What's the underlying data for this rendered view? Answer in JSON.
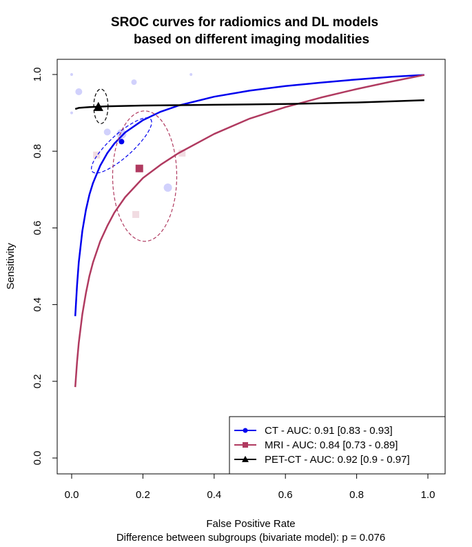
{
  "chart_data": {
    "type": "line",
    "title_lines": [
      "SROC curves for radiomics and DL models",
      "based on different imaging modalities"
    ],
    "xlabel": "False Positive Rate",
    "ylabel": "Sensitivity",
    "footnote": "Difference between subgroups (bivariate model): p = 0.076",
    "xlim": [
      0,
      1
    ],
    "ylim": [
      0,
      1
    ],
    "x_ticks": [
      0.0,
      0.2,
      0.4,
      0.6,
      0.8,
      1.0
    ],
    "x_tick_labels": [
      "0.0",
      "0.2",
      "0.4",
      "0.6",
      "0.8",
      "1.0"
    ],
    "y_ticks": [
      0.0,
      0.2,
      0.4,
      0.6,
      0.8,
      1.0
    ],
    "y_tick_labels": [
      "0.0",
      "0.2",
      "0.4",
      "0.6",
      "0.8",
      "1.0"
    ],
    "legend_position": "bottom-right",
    "series": [
      {
        "name": "CT",
        "legend_label": "CT - AUC: 0.91 [0.83 - 0.93]",
        "color": "#0000ee",
        "marker": "circle",
        "curve": {
          "x": [
            0.01,
            0.015,
            0.02,
            0.03,
            0.04,
            0.05,
            0.06,
            0.08,
            0.1,
            0.12,
            0.15,
            0.2,
            0.25,
            0.3,
            0.4,
            0.5,
            0.6,
            0.7,
            0.8,
            0.9,
            0.99
          ],
          "y": [
            0.37,
            0.45,
            0.51,
            0.592,
            0.647,
            0.687,
            0.717,
            0.762,
            0.795,
            0.82,
            0.849,
            0.881,
            0.903,
            0.919,
            0.942,
            0.958,
            0.97,
            0.979,
            0.987,
            0.994,
            0.999
          ]
        },
        "summary_point": {
          "fpr": 0.14,
          "sens": 0.825
        },
        "confidence_region": {
          "cx": 0.14,
          "cy": 0.815,
          "rx": 0.11,
          "ry": 0.03,
          "angle_deg": -42
        },
        "studies": [
          {
            "fpr": 0.02,
            "sens": 0.955,
            "size": 5
          },
          {
            "fpr": 0.14,
            "sens": 0.845,
            "size": 7
          },
          {
            "fpr": 0.1,
            "sens": 0.85,
            "size": 5
          },
          {
            "fpr": 0.175,
            "sens": 0.98,
            "size": 4
          },
          {
            "fpr": 0.27,
            "sens": 0.705,
            "size": 6
          },
          {
            "fpr": 0.0,
            "sens": 1.0,
            "size": 2
          },
          {
            "fpr": 0.335,
            "sens": 1.0,
            "size": 2
          },
          {
            "fpr": 0.0,
            "sens": 0.9,
            "size": 2
          }
        ]
      },
      {
        "name": "MRI",
        "legend_label": "MRI - AUC: 0.84 [0.73 - 0.89]",
        "color": "#b03a60",
        "marker": "square",
        "curve": {
          "x": [
            0.01,
            0.015,
            0.02,
            0.03,
            0.04,
            0.05,
            0.06,
            0.08,
            0.1,
            0.12,
            0.15,
            0.2,
            0.25,
            0.3,
            0.4,
            0.5,
            0.6,
            0.7,
            0.8,
            0.9,
            0.99
          ],
          "y": [
            0.185,
            0.25,
            0.3,
            0.375,
            0.43,
            0.475,
            0.51,
            0.565,
            0.605,
            0.64,
            0.68,
            0.73,
            0.765,
            0.795,
            0.845,
            0.885,
            0.915,
            0.94,
            0.962,
            0.982,
            0.999
          ]
        },
        "summary_point": {
          "fpr": 0.19,
          "sens": 0.755
        },
        "confidence_region": {
          "cx": 0.205,
          "cy": 0.735,
          "rx": 0.09,
          "ry": 0.17,
          "angle_deg": 0
        },
        "studies": [
          {
            "fpr": 0.07,
            "sens": 0.79,
            "size": 5
          },
          {
            "fpr": 0.31,
            "sens": 0.795,
            "size": 5
          },
          {
            "fpr": 0.18,
            "sens": 0.635,
            "size": 5
          }
        ]
      },
      {
        "name": "PET-CT",
        "legend_label": "PET-CT - AUC: 0.92 [0.9 - 0.97]",
        "color": "#000000",
        "marker": "triangle",
        "curve": {
          "x": [
            0.01,
            0.02,
            0.05,
            0.1,
            0.2,
            0.3,
            0.4,
            0.5,
            0.6,
            0.7,
            0.8,
            0.9,
            0.99
          ],
          "y": [
            0.91,
            0.913,
            0.915,
            0.917,
            0.919,
            0.92,
            0.921,
            0.922,
            0.923,
            0.925,
            0.927,
            0.93,
            0.933
          ]
        },
        "summary_point": {
          "fpr": 0.075,
          "sens": 0.915
        },
        "confidence_region": {
          "cx": 0.082,
          "cy": 0.917,
          "rx": 0.02,
          "ry": 0.045,
          "angle_deg": 0
        },
        "studies": []
      }
    ]
  }
}
